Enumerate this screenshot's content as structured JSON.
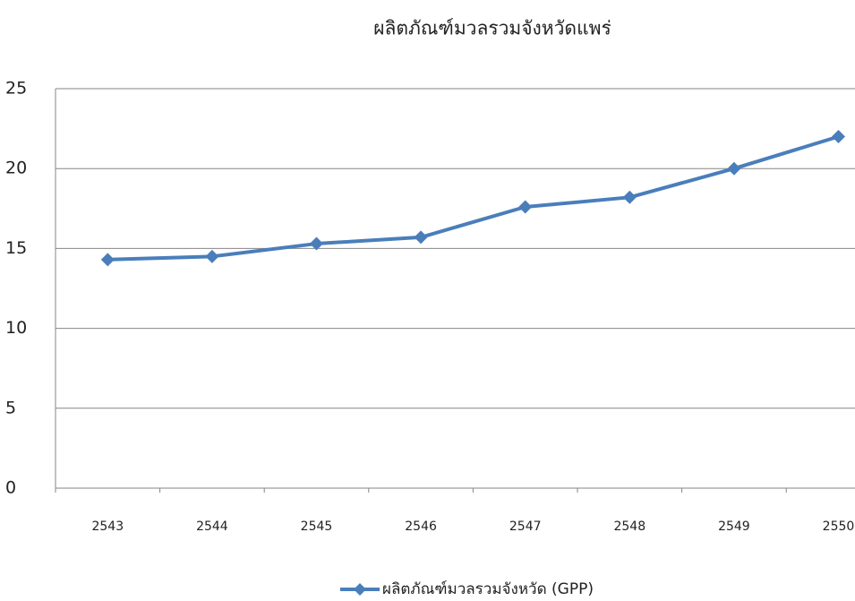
{
  "chart_data": {
    "type": "line",
    "title": "ผลิตภัณฑ์มวลรวมจังหวัดแพร่",
    "categories": [
      "2543",
      "2544",
      "2545",
      "2546",
      "2547",
      "2548",
      "2549",
      "2550"
    ],
    "series": [
      {
        "name": "ผลิตภัณฑ์มวลรวมจังหวัด (GPP)",
        "color": "#4a7ebb",
        "values": [
          14.3,
          14.5,
          15.3,
          15.7,
          17.6,
          18.2,
          20.0,
          22.0
        ]
      }
    ],
    "ylim": [
      0,
      25
    ],
    "yticks": [
      0,
      5,
      10,
      15,
      20,
      25
    ],
    "grid": true,
    "legend": "bottom"
  }
}
